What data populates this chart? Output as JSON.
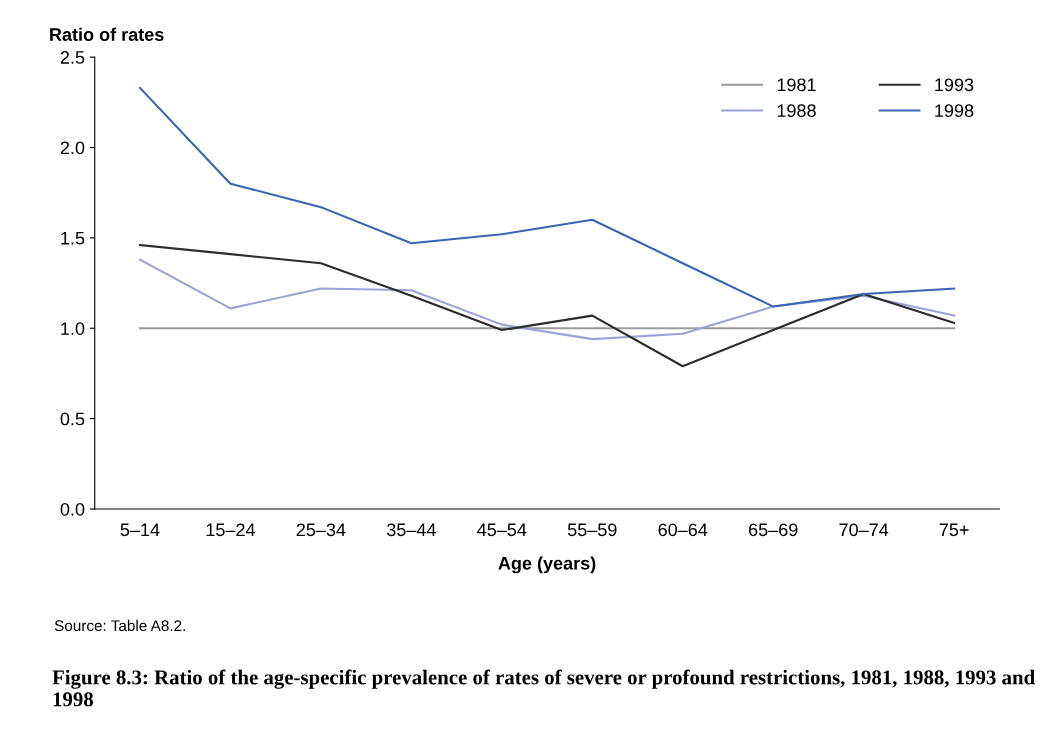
{
  "chart_data": {
    "type": "line",
    "title": "Figure 8.3: Ratio of the age-specific prevalence of rates of severe or profound restrictions, 1981, 1988, 1993 and 1998",
    "xlabel": "Age (years)",
    "ylabel": "Ratio of rates",
    "annotations": [
      "Source: Table A8.2."
    ],
    "categories": [
      "5–14",
      "15–24",
      "25–34",
      "35–44",
      "45–54",
      "55–59",
      "60–64",
      "65–69",
      "70–74",
      "75+"
    ],
    "series": [
      {
        "name": "1981",
        "color": "#9a9a9a",
        "values": [
          1.0,
          1.0,
          1.0,
          1.0,
          1.0,
          1.0,
          1.0,
          1.0,
          1.0,
          1.0
        ]
      },
      {
        "name": "1988",
        "color": "#9aa3d4",
        "values": [
          1.38,
          1.11,
          1.22,
          1.21,
          1.02,
          0.94,
          0.97,
          1.12,
          1.18,
          1.07
        ]
      },
      {
        "name": "1993",
        "color": "#2b2b2b",
        "values": [
          1.46,
          1.41,
          1.36,
          1.18,
          0.99,
          1.07,
          0.79,
          0.99,
          1.19,
          1.03
        ]
      },
      {
        "name": "1998",
        "color": "#3a64b0",
        "values": [
          2.33,
          1.8,
          1.67,
          1.47,
          1.52,
          1.6,
          1.36,
          1.12,
          1.19,
          1.22
        ]
      }
    ],
    "ylim": [
      0,
      2.5
    ],
    "yticks": [
      {
        "value": 0,
        "label": "0.0"
      },
      {
        "value": 0.5,
        "label": "0.5"
      },
      {
        "value": 1,
        "label": "1.0"
      },
      {
        "value": 1.5,
        "label": "1.5"
      },
      {
        "value": 2,
        "label": "2.0"
      },
      {
        "value": 2.5,
        "label": "2.5"
      }
    ],
    "grid": false,
    "legend": "top right",
    "marker": "none",
    "line_style": "solid"
  }
}
